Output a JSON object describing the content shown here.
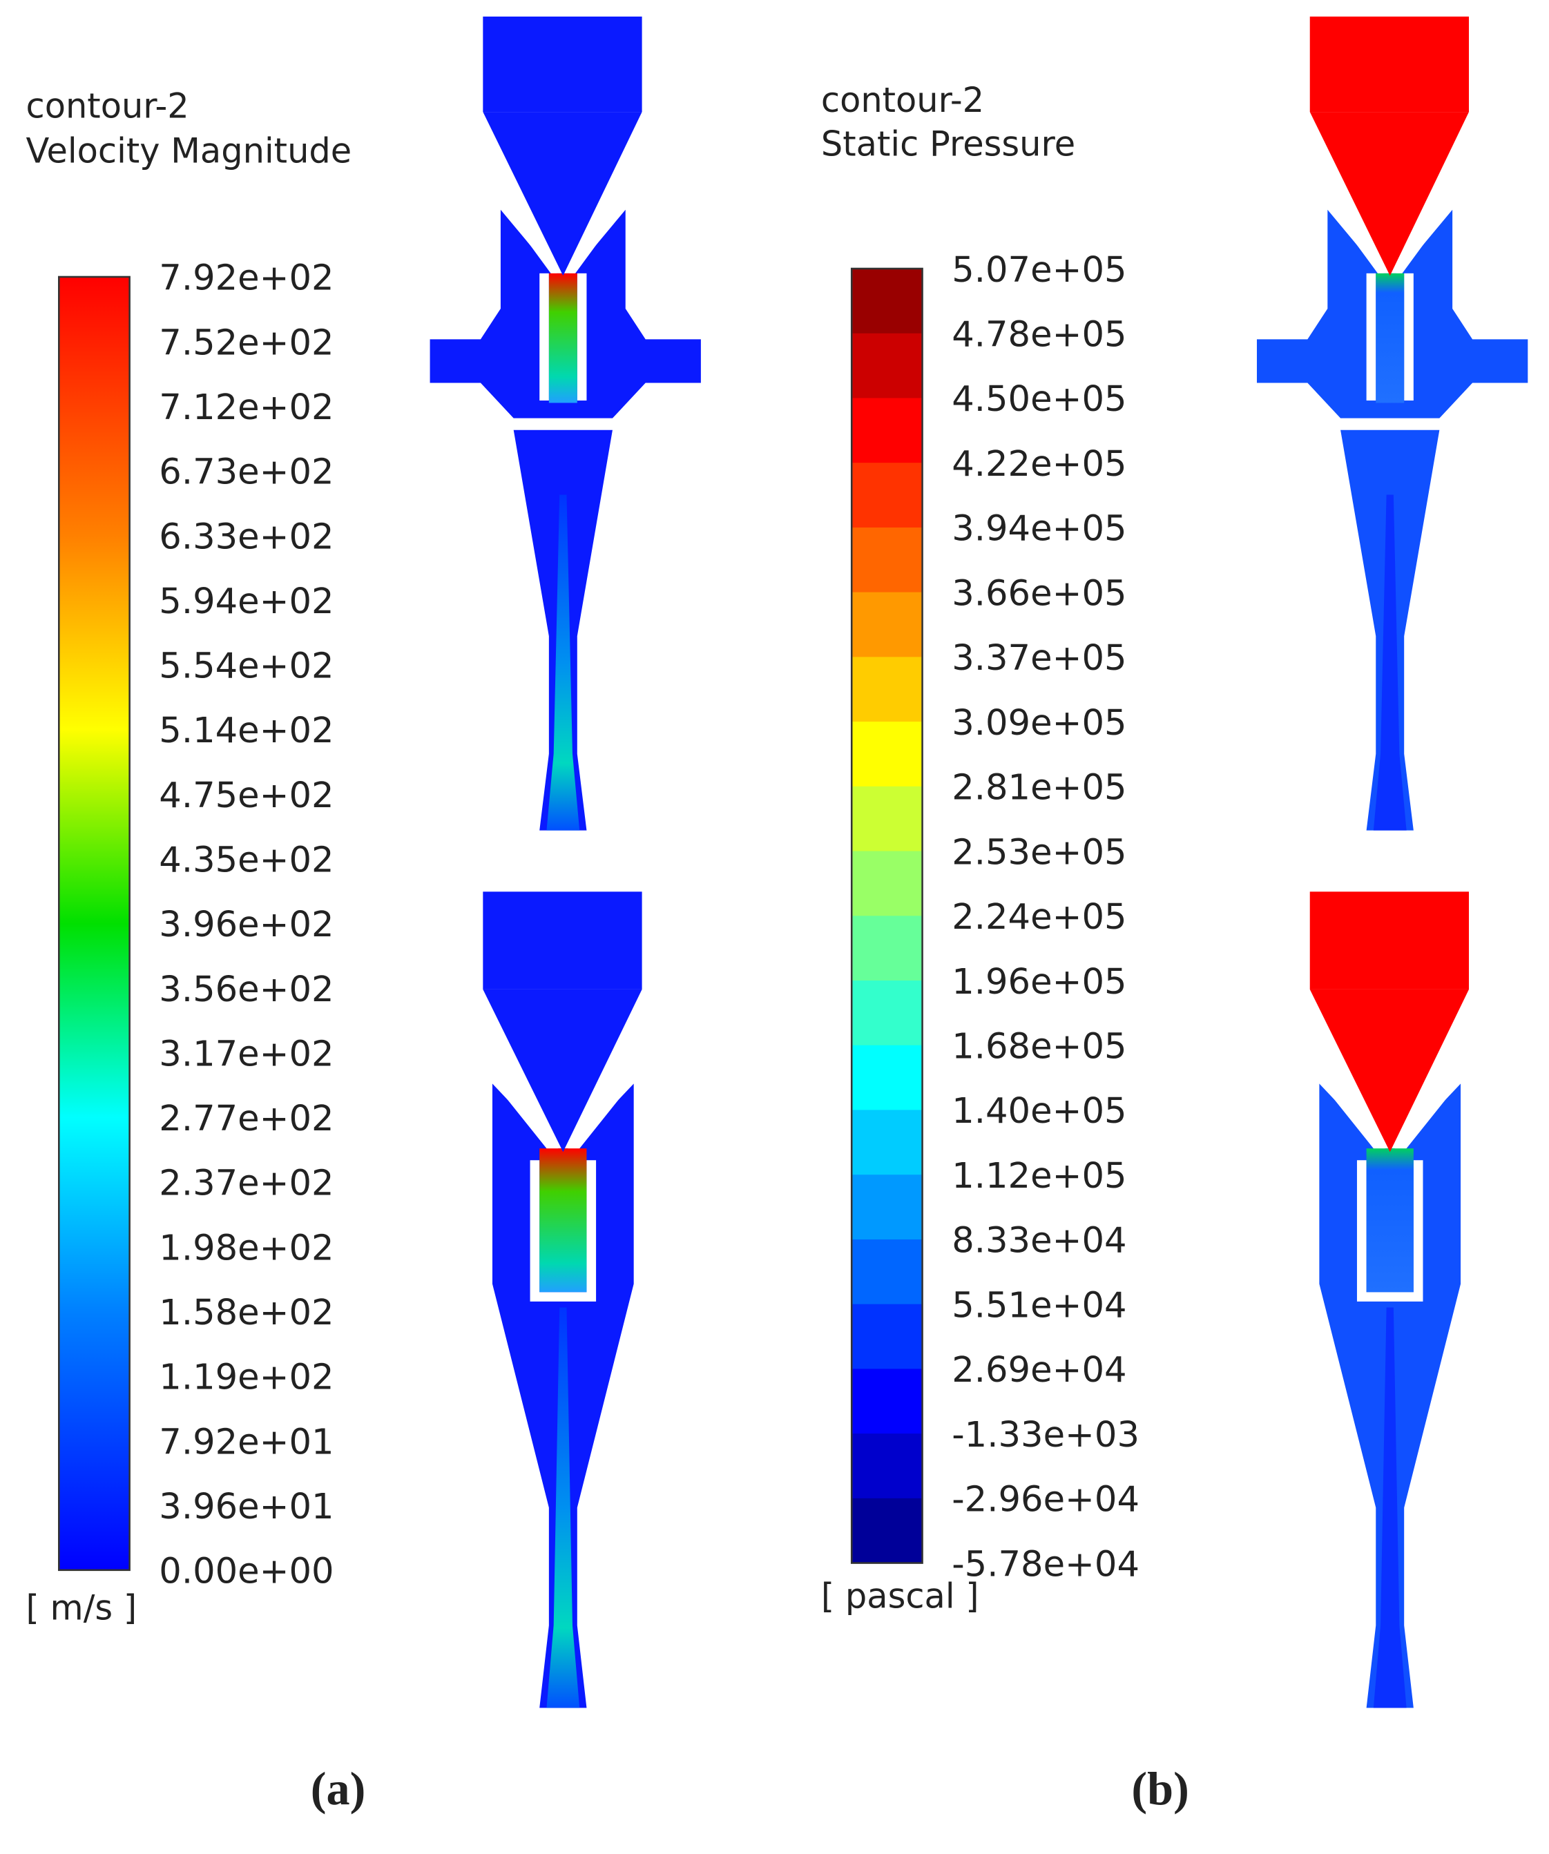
{
  "panels": [
    {
      "title": "contour-2",
      "subtitle": "Velocity Magnitude",
      "ticks": [
        "7.92e+02",
        "7.52e+02",
        "7.12e+02",
        "6.73e+02",
        "6.33e+02",
        "5.94e+02",
        "5.54e+02",
        "5.14e+02",
        "4.75e+02",
        "4.35e+02",
        "3.96e+02",
        "3.56e+02",
        "3.17e+02",
        "2.77e+02",
        "2.37e+02",
        "1.98e+02",
        "1.58e+02",
        "1.19e+02",
        "7.92e+01",
        "3.96e+01",
        "0.00e+00"
      ],
      "unit": "[ m/s ]",
      "caption": "(a)"
    },
    {
      "title": "contour-2",
      "subtitle": "Static Pressure",
      "ticks": [
        "5.07e+05",
        "4.78e+05",
        "4.50e+05",
        "4.22e+05",
        "3.94e+05",
        "3.66e+05",
        "3.37e+05",
        "3.09e+05",
        "2.81e+05",
        "2.53e+05",
        "2.24e+05",
        "1.96e+05",
        "1.68e+05",
        "1.40e+05",
        "1.12e+05",
        "8.33e+04",
        "5.51e+04",
        "2.69e+04",
        "-1.33e+03",
        "-2.96e+04",
        "-5.78e+04"
      ],
      "unit": "[ pascal ]",
      "caption": "(b)"
    }
  ]
}
